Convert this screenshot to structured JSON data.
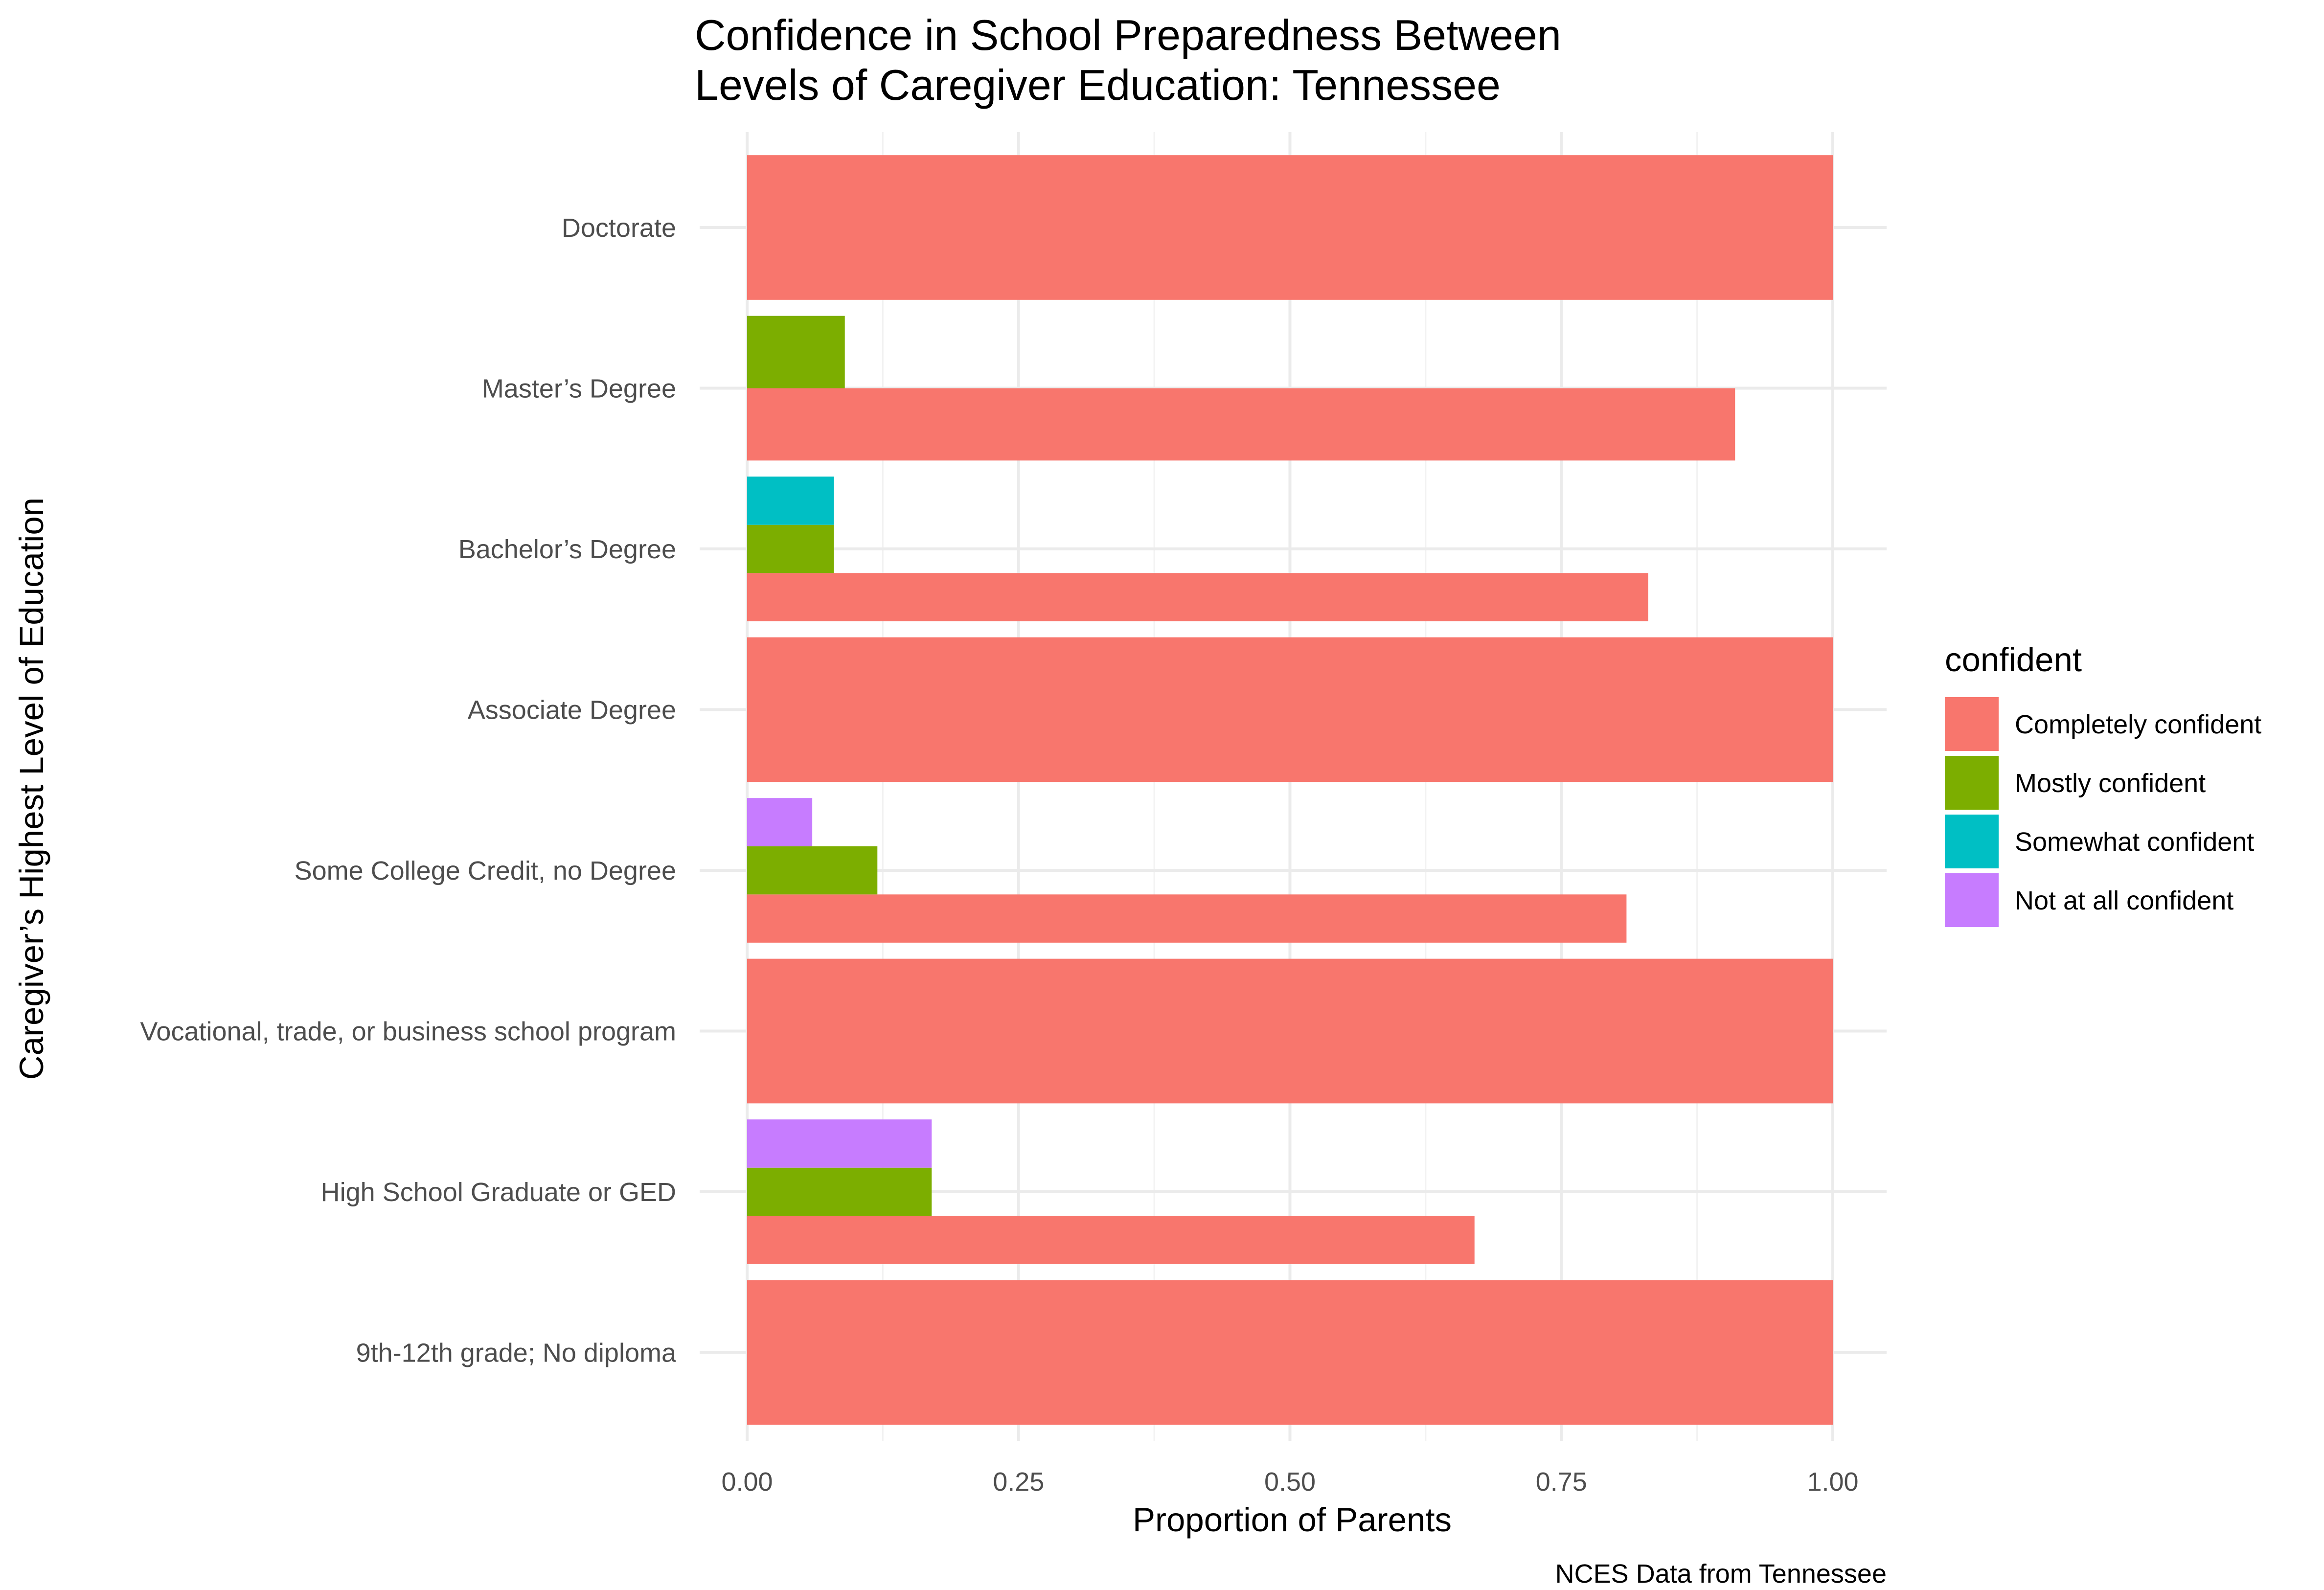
{
  "chart_data": {
    "type": "bar",
    "orientation": "horizontal",
    "position": "dodge",
    "title_lines": [
      "Confidence in School Preparedness Between",
      "Levels of Caregiver Education: Tennessee"
    ],
    "xlabel": "Proportion of Parents",
    "ylabel": "Caregiver’s Highest Level of Education",
    "caption": "NCES Data from Tennessee",
    "xlim": [
      0,
      1
    ],
    "x_ticks": [
      {
        "value": 0,
        "label": "0.00"
      },
      {
        "value": 0.25,
        "label": "0.25"
      },
      {
        "value": 0.5,
        "label": "0.50"
      },
      {
        "value": 0.75,
        "label": "0.75"
      },
      {
        "value": 1,
        "label": "1.00"
      }
    ],
    "grid": true,
    "legend": {
      "title": "confident",
      "placement": "right",
      "entries": [
        {
          "label": "Completely confident",
          "color": "#F8766D"
        },
        {
          "label": "Mostly confident",
          "color": "#7CAE00"
        },
        {
          "label": "Somewhat confident",
          "color": "#00BFC4"
        },
        {
          "label": "Not at all confident",
          "color": "#C77CFF"
        }
      ]
    },
    "categories": [
      {
        "label": "Doctorate",
        "bars": [
          {
            "series": "Completely confident",
            "value": 1.0
          }
        ]
      },
      {
        "label": "Master’s Degree",
        "bars": [
          {
            "series": "Completely confident",
            "value": 0.91
          },
          {
            "series": "Mostly confident",
            "value": 0.09
          }
        ]
      },
      {
        "label": "Bachelor’s Degree",
        "bars": [
          {
            "series": "Completely confident",
            "value": 0.83
          },
          {
            "series": "Mostly confident",
            "value": 0.08
          },
          {
            "series": "Somewhat confident",
            "value": 0.08
          }
        ]
      },
      {
        "label": "Associate Degree",
        "bars": [
          {
            "series": "Completely confident",
            "value": 1.0
          }
        ]
      },
      {
        "label": "Some College Credit, no Degree",
        "bars": [
          {
            "series": "Completely confident",
            "value": 0.81
          },
          {
            "series": "Mostly confident",
            "value": 0.12
          },
          {
            "series": "Not at all confident",
            "value": 0.06
          }
        ]
      },
      {
        "label": "Vocational, trade, or business school program",
        "bars": [
          {
            "series": "Completely confident",
            "value": 1.0
          }
        ]
      },
      {
        "label": "High School Graduate or GED",
        "bars": [
          {
            "series": "Completely confident",
            "value": 0.67
          },
          {
            "series": "Mostly confident",
            "value": 0.17
          },
          {
            "series": "Not at all confident",
            "value": 0.17
          }
        ]
      },
      {
        "label": "9th-12th grade; No diploma",
        "bars": [
          {
            "series": "Completely confident",
            "value": 1.0
          }
        ]
      }
    ]
  }
}
